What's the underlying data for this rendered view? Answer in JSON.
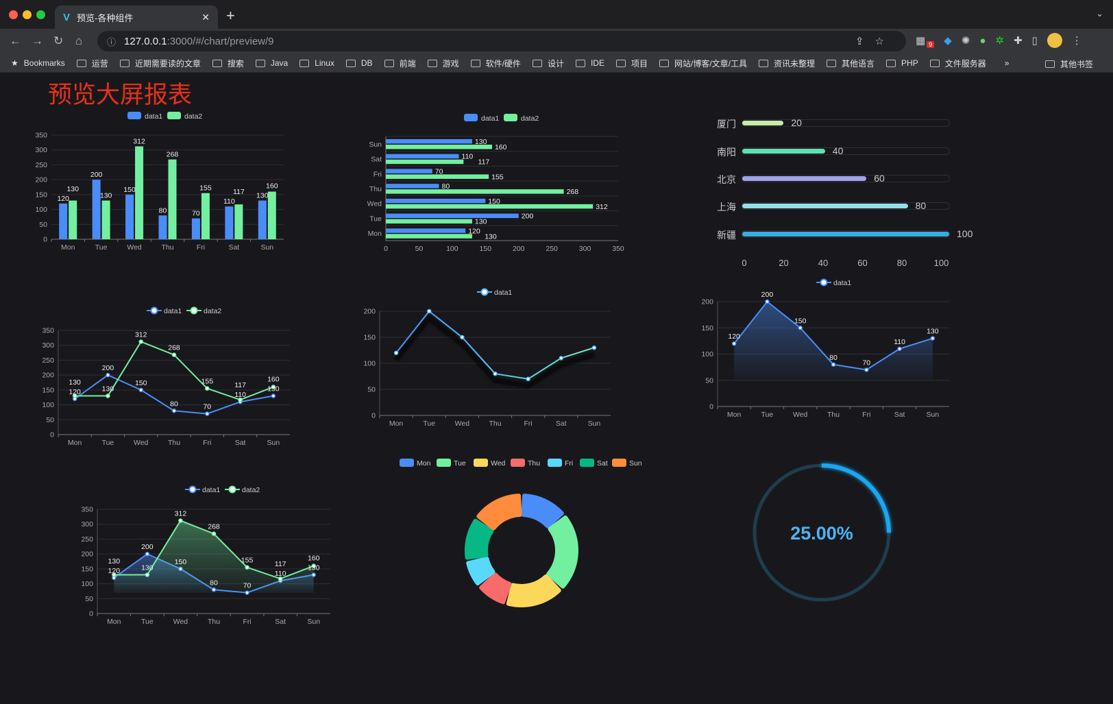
{
  "browser": {
    "tab_title": "预览-各种组件",
    "url_host": "127.0.0.1",
    "url_rest": ":3000/#/chart/preview/9",
    "bookmarks_label": "Bookmarks",
    "bookmarks": [
      "运营",
      "近期需要读的文章",
      "搜索",
      "Java",
      "Linux",
      "DB",
      "前端",
      "游戏",
      "软件/硬件",
      "设计",
      "IDE",
      "项目",
      "网站/博客/文章/工具",
      "资讯未整理",
      "其他语言",
      "PHP",
      "文件服务器"
    ],
    "overflow": "»",
    "other_bookmarks": "其他书签",
    "extension_badge": "9"
  },
  "page": {
    "title": "预览大屏报表"
  },
  "chart_data": [
    {
      "type": "bar",
      "categories": [
        "Mon",
        "Tue",
        "Wed",
        "Thu",
        "Fri",
        "Sat",
        "Sun"
      ],
      "yticks": [
        "0",
        "50",
        "100",
        "150",
        "200",
        "250",
        "300",
        "350"
      ],
      "ylim": [
        0,
        350
      ],
      "legend": "top",
      "series": [
        {
          "name": "data1",
          "values": [
            120,
            200,
            150,
            80,
            70,
            110,
            130
          ],
          "color": "#4b8df8"
        },
        {
          "name": "data2",
          "values": [
            130,
            130,
            312,
            268,
            155,
            117,
            160
          ],
          "color": "#72f0a0"
        }
      ]
    },
    {
      "type": "bar",
      "orientation": "horizontal",
      "categories": [
        "Mon",
        "Tue",
        "Wed",
        "Thu",
        "Fri",
        "Sat",
        "Sun"
      ],
      "xticks": [
        "0",
        "50",
        "100",
        "150",
        "200",
        "250",
        "300",
        "350"
      ],
      "xlim": [
        0,
        350
      ],
      "legend": "top",
      "series": [
        {
          "name": "data1",
          "values": [
            120,
            200,
            150,
            80,
            70,
            110,
            130
          ],
          "color": "#4b8df8"
        },
        {
          "name": "data2",
          "values": [
            130,
            130,
            312,
            268,
            155,
            117,
            160
          ],
          "color": "#72f0a0"
        }
      ]
    },
    {
      "type": "bar",
      "orientation": "horizontal-progress",
      "categories": [
        "厦门",
        "南阳",
        "北京",
        "上海",
        "新疆"
      ],
      "values": [
        20,
        40,
        60,
        80,
        100
      ],
      "xticks": [
        "0",
        "20",
        "40",
        "60",
        "80",
        "100"
      ],
      "xlim": [
        0,
        100
      ],
      "colors": [
        "#c6eca6",
        "#5fe2b2",
        "#9da5e8",
        "#92e0e8",
        "#36aee2"
      ]
    },
    {
      "type": "line",
      "categories": [
        "Mon",
        "Tue",
        "Wed",
        "Thu",
        "Fri",
        "Sat",
        "Sun"
      ],
      "yticks": [
        "0",
        "50",
        "100",
        "150",
        "200",
        "250",
        "300",
        "350"
      ],
      "ylim": [
        0,
        350
      ],
      "legend": "top",
      "series": [
        {
          "name": "data1",
          "values": [
            120,
            200,
            150,
            80,
            70,
            110,
            130
          ],
          "color": "#4b8df8"
        },
        {
          "name": "data2",
          "values": [
            130,
            130,
            312,
            268,
            155,
            117,
            160
          ],
          "color": "#72f0a0"
        }
      ]
    },
    {
      "type": "line",
      "categories": [
        "Mon",
        "Tue",
        "Wed",
        "Thu",
        "Fri",
        "Sat",
        "Sun"
      ],
      "yticks": [
        "0",
        "50",
        "100",
        "150",
        "200"
      ],
      "ylim": [
        0,
        200
      ],
      "legend": "top",
      "series": [
        {
          "name": "data1",
          "values": [
            120,
            200,
            150,
            80,
            70,
            110,
            130
          ],
          "color": "#4fb8f0"
        }
      ]
    },
    {
      "type": "area",
      "categories": [
        "Mon",
        "Tue",
        "Wed",
        "Thu",
        "Fri",
        "Sat",
        "Sun"
      ],
      "yticks": [
        "0",
        "50",
        "100",
        "150",
        "200"
      ],
      "ylim": [
        0,
        200
      ],
      "legend": "top",
      "series": [
        {
          "name": "data1",
          "values": [
            120,
            200,
            150,
            80,
            70,
            110,
            130
          ],
          "color": "#4b8df8"
        }
      ]
    },
    {
      "type": "area",
      "categories": [
        "Mon",
        "Tue",
        "Wed",
        "Thu",
        "Fri",
        "Sat",
        "Sun"
      ],
      "yticks": [
        "0",
        "50",
        "100",
        "150",
        "200",
        "250",
        "300",
        "350"
      ],
      "ylim": [
        0,
        350
      ],
      "legend": "top",
      "series": [
        {
          "name": "data1",
          "values": [
            120,
            200,
            150,
            80,
            70,
            110,
            130
          ],
          "color": "#4b8df8"
        },
        {
          "name": "data2",
          "values": [
            130,
            130,
            312,
            268,
            155,
            117,
            160
          ],
          "color": "#72f0a0"
        }
      ]
    },
    {
      "type": "pie",
      "donut": true,
      "legend": "top",
      "categories": [
        "Mon",
        "Tue",
        "Wed",
        "Thu",
        "Fri",
        "Sat",
        "Sun"
      ],
      "values": [
        120,
        200,
        150,
        80,
        70,
        110,
        130
      ],
      "colors": [
        "#4b8df8",
        "#72f0a0",
        "#fcd85a",
        "#f76b6b",
        "#58d9f9",
        "#06b885",
        "#ff8c3c"
      ]
    },
    {
      "type": "gauge",
      "value": 25,
      "label": "25.00%",
      "color": "#1aa6f0",
      "track_color": "#1f3d4d"
    }
  ]
}
